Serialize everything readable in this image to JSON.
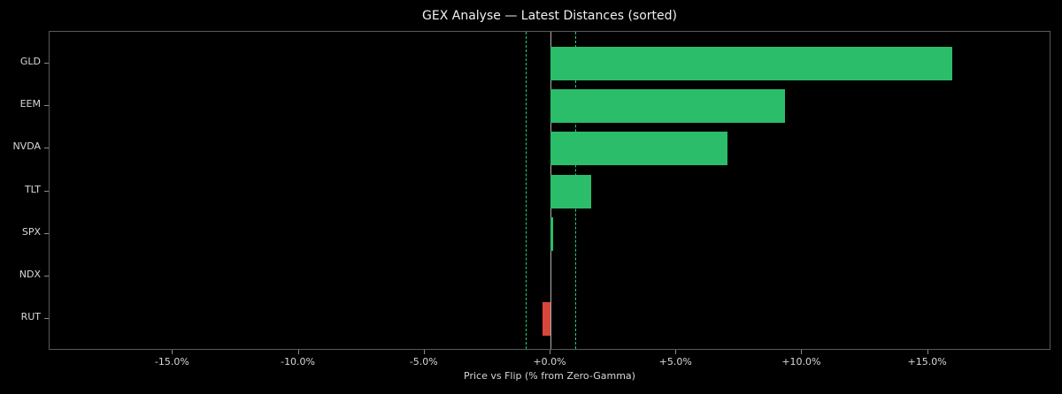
{
  "chart_data": {
    "type": "bar",
    "orientation": "horizontal",
    "title": "GEX Analyse — Latest Distances (sorted)",
    "xlabel": "Price vs Flip (% from Zero-Gamma)",
    "ylabel": "",
    "categories": [
      "GLD",
      "EEM",
      "NVDA",
      "TLT",
      "SPX",
      "NDX",
      "RUT"
    ],
    "values": [
      15.95,
      9.33,
      7.04,
      1.6,
      0.1,
      0.0,
      -0.32
    ],
    "colors": [
      "#2bbd6a",
      "#2bbd6a",
      "#2bbd6a",
      "#2bbd6a",
      "#2bbd6a",
      "#2bbd6a",
      "#d9463b"
    ],
    "xlim": [
      -19.9,
      19.9
    ],
    "xticks": [
      -15,
      -10,
      -5,
      0,
      5,
      10,
      15
    ],
    "xtick_labels": [
      "-15.0%",
      "-10.0%",
      "-5.0%",
      "+0.0%",
      "+5.0%",
      "+10.0%",
      "+15.0%"
    ],
    "reference_lines": [
      {
        "x": -1.0,
        "style": "dashed",
        "color": "#1fd07a"
      },
      {
        "x": 0.0,
        "style": "solid",
        "color": "#b0b0b0"
      },
      {
        "x": 1.0,
        "style": "dashed",
        "color": "#1fd07a"
      }
    ],
    "grid": false,
    "legend": null,
    "background": "#000000"
  }
}
